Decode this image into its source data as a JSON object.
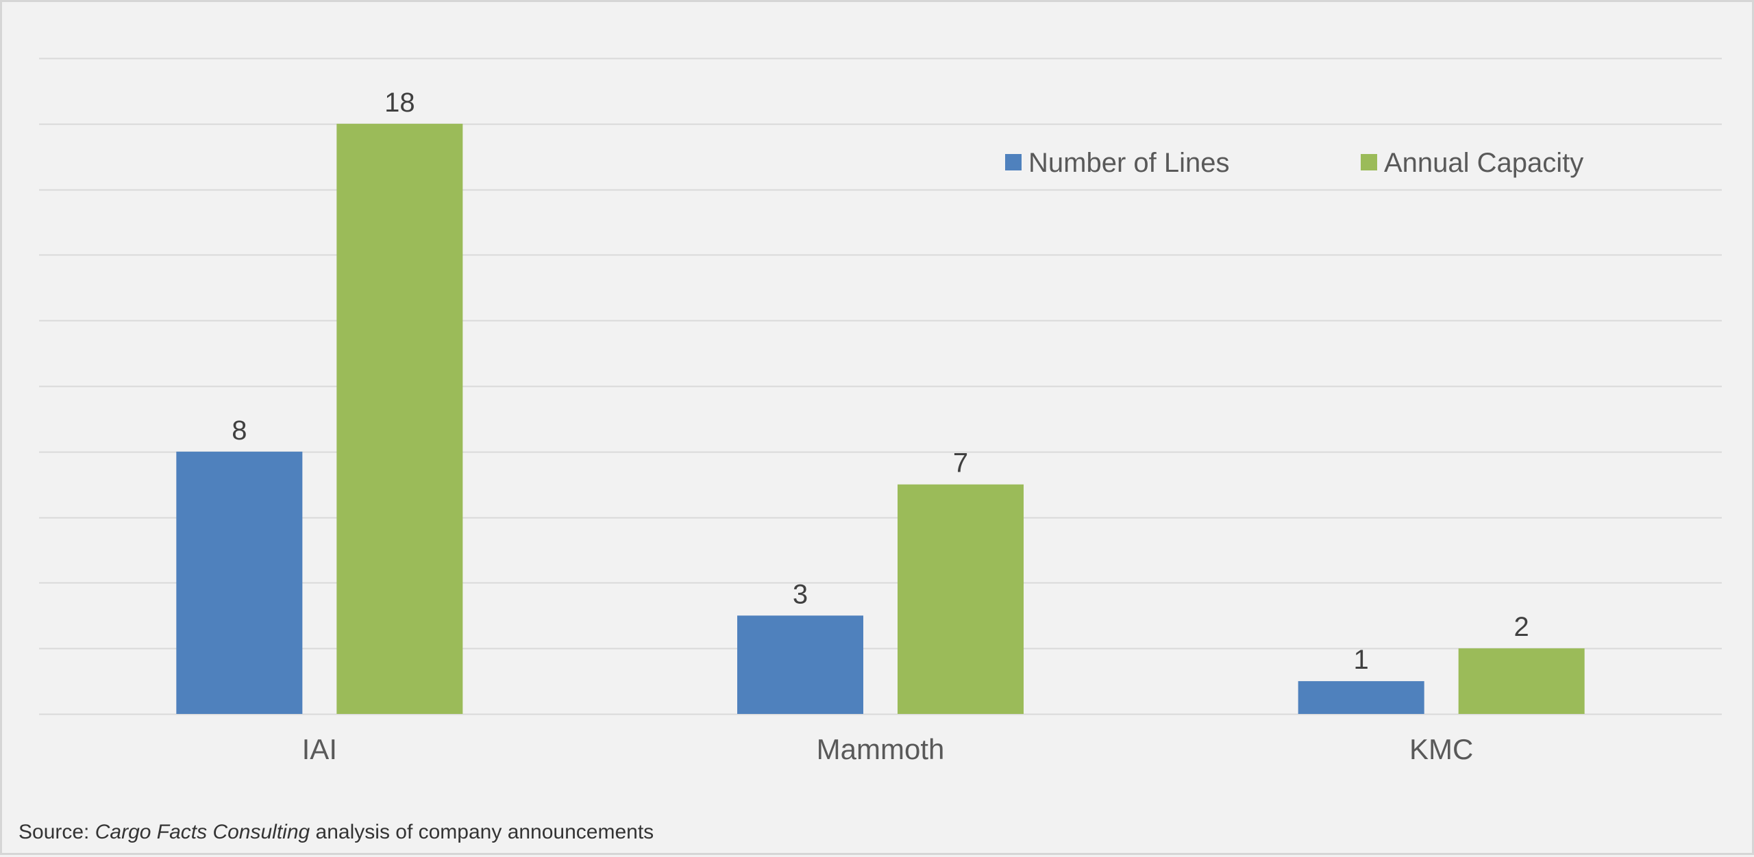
{
  "colors": {
    "background": "#f2f2f2",
    "gridline": "#d9d9d9",
    "series_lines": "#4f81bd",
    "series_capacity": "#9bbb59",
    "label_text": "#404040",
    "axis_text": "#595959"
  },
  "chart_data": {
    "type": "bar",
    "title": "",
    "xlabel": "",
    "ylabel": "",
    "categories": [
      "IAI",
      "Mammoth",
      "KMC"
    ],
    "series": [
      {
        "name": "Number of Lines",
        "values": [
          8,
          3,
          1
        ],
        "color": "#4f81bd"
      },
      {
        "name": "Annual Capacity",
        "values": [
          18,
          7,
          2
        ],
        "color": "#9bbb59"
      }
    ],
    "data_labels": [
      [
        "8",
        "3",
        "1"
      ],
      [
        "18",
        "7",
        "2"
      ]
    ],
    "ylim": [
      0,
      20
    ],
    "y_gridline_step": 2,
    "grid": true,
    "y_axis_labels_shown": false,
    "legend_position": "top-right"
  },
  "footer": {
    "source_prefix": "Source: ",
    "source_italic": "Cargo Facts Consulting",
    "source_suffix": " analysis of company announcements"
  }
}
